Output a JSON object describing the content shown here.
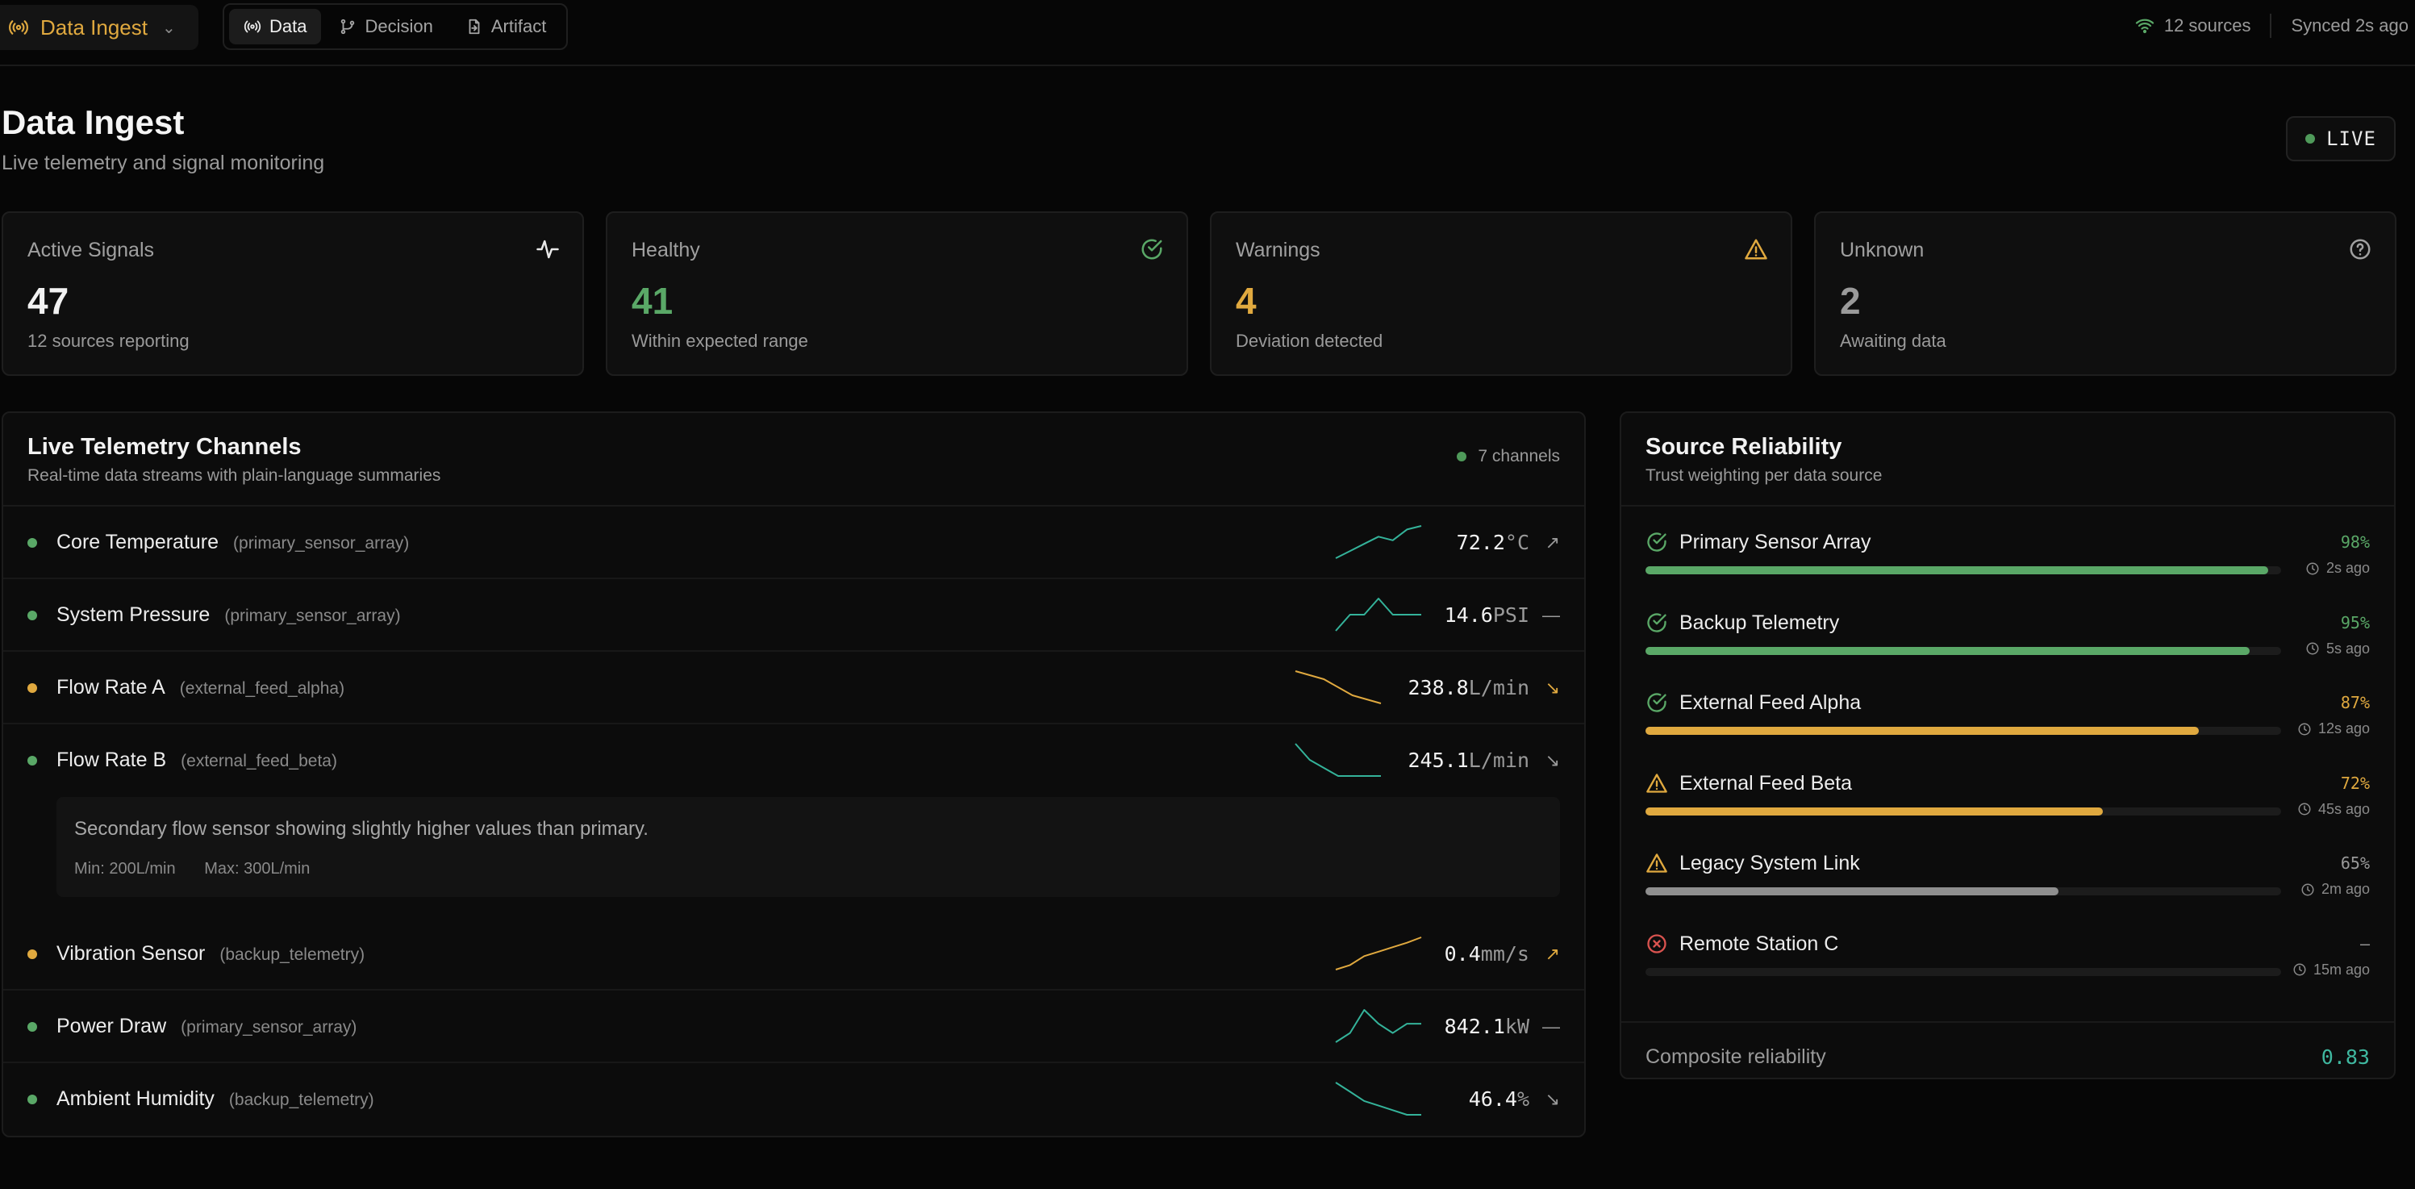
{
  "colors": {
    "green": "#5aa867",
    "amber": "#e0a93f",
    "red": "#d9534f",
    "gray": "#9a9a9a",
    "teal": "#34b39a",
    "sparkline_orange": "#e0a93f"
  },
  "topbar": {
    "app_name": "Data Ingest",
    "app_icon": "radio-tower-icon",
    "tabs": [
      {
        "label": "Data",
        "icon": "broadcast-icon",
        "active": true
      },
      {
        "label": "Decision",
        "icon": "git-branch-icon",
        "active": false
      },
      {
        "label": "Artifact",
        "icon": "file-export-icon",
        "active": false
      }
    ],
    "sources_label": "12 sources",
    "synced_label": "Synced 2s ago"
  },
  "header": {
    "title": "Data Ingest",
    "subtitle": "Live telemetry and signal monitoring",
    "live_label": "LIVE"
  },
  "stats": [
    {
      "label": "Active Signals",
      "value": "47",
      "sub": "12 sources reporting",
      "icon": "activity-icon",
      "color": "#f2f2f2"
    },
    {
      "label": "Healthy",
      "value": "41",
      "sub": "Within expected range",
      "icon": "check-circle-icon",
      "color": "#5aa867"
    },
    {
      "label": "Warnings",
      "value": "4",
      "sub": "Deviation detected",
      "icon": "warning-triangle-icon",
      "color": "#e0a93f"
    },
    {
      "label": "Unknown",
      "value": "2",
      "sub": "Awaiting data",
      "icon": "help-circle-icon",
      "color": "#9a9a9a"
    }
  ],
  "channels": {
    "title": "Live Telemetry Channels",
    "subtitle": "Real-time data streams with plain-language summaries",
    "count_label": "7 channels",
    "rows": [
      {
        "name": "Core Temperature",
        "source": "(primary_sensor_array)",
        "value": "72.2",
        "unit": "°C",
        "status": "green",
        "trend": "↗",
        "trend_color": "#9a9a9a",
        "spark_color": "#34b39a",
        "spark": [
          1,
          2,
          3,
          4,
          3.5,
          5,
          5.5
        ]
      },
      {
        "name": "System Pressure",
        "source": "(primary_sensor_array)",
        "value": "14.6",
        "unit": "PSI",
        "status": "green",
        "trend": "—",
        "trend_color": "#9a9a9a",
        "spark_color": "#34b39a",
        "spark": [
          1,
          3,
          3,
          5,
          3,
          3,
          3
        ]
      },
      {
        "name": "Flow Rate A",
        "source": "(external_feed_alpha)",
        "value": "238.8",
        "unit": "L/min",
        "status": "amber",
        "trend": "↘",
        "trend_color": "#e0a93f",
        "spark_color": "#e0a93f",
        "spark": [
          5,
          4.5,
          4,
          3,
          2,
          1.5,
          1
        ]
      },
      {
        "name": "Flow Rate B",
        "source": "(external_feed_beta)",
        "value": "245.1",
        "unit": "L/min",
        "status": "green",
        "trend": "↘",
        "trend_color": "#9a9a9a",
        "spark_color": "#34b39a",
        "spark": [
          5,
          3,
          2,
          1,
          1,
          1,
          1
        ]
      },
      {
        "name": "Vibration Sensor",
        "source": "(backup_telemetry)",
        "value": "0.4",
        "unit": "mm/s",
        "status": "amber",
        "trend": "↗",
        "trend_color": "#e0a93f",
        "spark_color": "#e0a93f",
        "spark": [
          1,
          1.5,
          2.5,
          3,
          3.5,
          4,
          4.6
        ]
      },
      {
        "name": "Power Draw",
        "source": "(primary_sensor_array)",
        "value": "842.1",
        "unit": "kW",
        "status": "green",
        "trend": "—",
        "trend_color": "#9a9a9a",
        "spark_color": "#34b39a",
        "spark": [
          1,
          2,
          4.5,
          3,
          2,
          3,
          3
        ]
      },
      {
        "name": "Ambient Humidity",
        "source": "(backup_telemetry)",
        "value": "46.4",
        "unit": "%",
        "status": "green",
        "trend": "↘",
        "trend_color": "#9a9a9a",
        "spark_color": "#34b39a",
        "spark": [
          5,
          4,
          3,
          2.5,
          2,
          1.5,
          1.5
        ]
      }
    ],
    "expanded_summary": {
      "text": "Secondary flow sensor showing slightly higher values than primary.",
      "min": "Min: 200L/min",
      "max": "Max: 300L/min"
    }
  },
  "reliability": {
    "title": "Source Reliability",
    "subtitle": "Trust weighting per data source",
    "items": [
      {
        "name": "Primary Sensor Array",
        "percent": "98%",
        "fraction": 0.98,
        "ago": "2s ago",
        "icon": "check-circle-icon",
        "color": "#5aa867",
        "pct_color": "#5aa867"
      },
      {
        "name": "Backup Telemetry",
        "percent": "95%",
        "fraction": 0.95,
        "ago": "5s ago",
        "icon": "check-circle-icon",
        "color": "#5aa867",
        "pct_color": "#5aa867"
      },
      {
        "name": "External Feed Alpha",
        "percent": "87%",
        "fraction": 0.87,
        "ago": "12s ago",
        "icon": "check-circle-icon",
        "color": "#e0a93f",
        "pct_color": "#e0a93f"
      },
      {
        "name": "External Feed Beta",
        "percent": "72%",
        "fraction": 0.72,
        "ago": "45s ago",
        "icon": "warning-triangle-icon",
        "color": "#e0a93f",
        "pct_color": "#e0a93f"
      },
      {
        "name": "Legacy System Link",
        "percent": "65%",
        "fraction": 0.65,
        "ago": "2m ago",
        "icon": "warning-triangle-icon",
        "color": "#8f8f8f",
        "pct_color": "#9a9a9a"
      },
      {
        "name": "Remote Station C",
        "percent": "–",
        "fraction": 0,
        "ago": "15m ago",
        "icon": "x-circle-icon",
        "color": "#555555",
        "pct_color": "#9a9a9a"
      }
    ],
    "composite_label": "Composite reliability",
    "composite_value": "0.83"
  }
}
